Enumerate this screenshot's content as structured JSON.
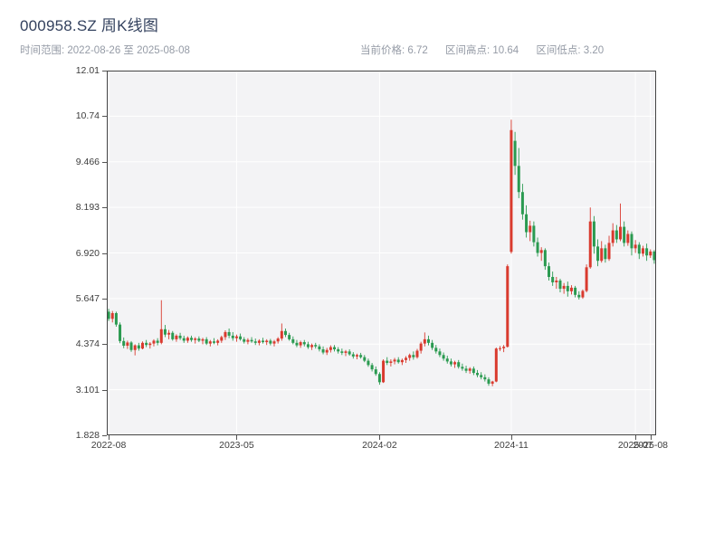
{
  "header": {
    "title": "000958.SZ 周K线图",
    "time_range_label": "时间范围: 2022-08-26 至 2025-08-08",
    "stats": {
      "current_price": "当前价格: 6.72",
      "range_high": "区间高点: 10.64",
      "range_low": "区间低点: 3.20"
    }
  },
  "chart_data": {
    "type": "candlestick",
    "title": "000958.SZ 周K线图",
    "symbol": "000958.SZ",
    "interval": "weekly",
    "date_start": "2022-08-26",
    "date_end": "2025-08-08",
    "current_price": 6.72,
    "range_high": 10.64,
    "range_low": 3.2,
    "ylim": [
      1.828,
      12.012
    ],
    "grid": true,
    "y_ticks": [
      {
        "label": "1.828",
        "value": 1.828
      },
      {
        "label": "3.101",
        "value": 3.101
      },
      {
        "label": "4.374",
        "value": 4.374
      },
      {
        "label": "5.647",
        "value": 5.647
      },
      {
        "label": "6.920",
        "value": 6.92
      },
      {
        "label": "8.193",
        "value": 8.193
      },
      {
        "label": "9.466",
        "value": 9.466
      },
      {
        "label": "10.74",
        "value": 10.739
      },
      {
        "label": "12.01",
        "value": 12.012
      }
    ],
    "x_ticks": [
      {
        "label": "2022-08",
        "index": 0
      },
      {
        "label": "2023-05",
        "index": 34
      },
      {
        "label": "2024-02",
        "index": 72
      },
      {
        "label": "2024-11",
        "index": 107
      },
      {
        "label": "2025-07",
        "index": 140
      },
      {
        "label": "2025-08",
        "index": 144
      }
    ],
    "colors": {
      "up": "#d93a2e",
      "down": "#2a9a50",
      "panel": "#f3f3f5",
      "grid": "#ffffff",
      "border": "#454545",
      "tick_text": "#3d3d3d"
    },
    "columns": [
      "date",
      "open",
      "high",
      "low",
      "close"
    ],
    "candles": [
      [
        "2022-08-26",
        5.28,
        5.36,
        5.02,
        5.08
      ],
      [
        "2022-09-02",
        5.08,
        5.3,
        4.98,
        5.24
      ],
      [
        "2022-09-09",
        5.24,
        5.28,
        4.86,
        4.92
      ],
      [
        "2022-09-16",
        4.92,
        4.98,
        4.4,
        4.46
      ],
      [
        "2022-09-23",
        4.46,
        4.56,
        4.26,
        4.33
      ],
      [
        "2022-09-30",
        4.33,
        4.47,
        4.24,
        4.42
      ],
      [
        "2022-10-14",
        4.42,
        4.46,
        4.16,
        4.21
      ],
      [
        "2022-10-21",
        4.21,
        4.37,
        4.06,
        4.34
      ],
      [
        "2022-10-28",
        4.34,
        4.41,
        4.19,
        4.25
      ],
      [
        "2022-11-04",
        4.25,
        4.45,
        4.23,
        4.41
      ],
      [
        "2022-11-11",
        4.41,
        4.49,
        4.29,
        4.35
      ],
      [
        "2022-11-18",
        4.35,
        4.43,
        4.25,
        4.39
      ],
      [
        "2022-11-25",
        4.39,
        4.51,
        4.31,
        4.47
      ],
      [
        "2022-12-02",
        4.47,
        4.54,
        4.34,
        4.41
      ],
      [
        "2022-12-09",
        4.41,
        5.6,
        4.37,
        4.79
      ],
      [
        "2022-12-16",
        4.79,
        4.91,
        4.57,
        4.64
      ],
      [
        "2022-12-23",
        4.64,
        4.77,
        4.51,
        4.69
      ],
      [
        "2022-12-30",
        4.69,
        4.74,
        4.47,
        4.51
      ],
      [
        "2023-01-06",
        4.51,
        4.65,
        4.44,
        4.61
      ],
      [
        "2023-01-13",
        4.61,
        4.69,
        4.49,
        4.54
      ],
      [
        "2023-01-20",
        4.54,
        4.61,
        4.41,
        4.47
      ],
      [
        "2023-02-03",
        4.47,
        4.59,
        4.41,
        4.55
      ],
      [
        "2023-02-10",
        4.55,
        4.61,
        4.44,
        4.49
      ],
      [
        "2023-02-17",
        4.49,
        4.57,
        4.39,
        4.53
      ],
      [
        "2023-02-24",
        4.53,
        4.59,
        4.43,
        4.47
      ],
      [
        "2023-03-03",
        4.47,
        4.55,
        4.37,
        4.51
      ],
      [
        "2023-03-10",
        4.51,
        4.57,
        4.35,
        4.39
      ],
      [
        "2023-03-17",
        4.39,
        4.49,
        4.31,
        4.45
      ],
      [
        "2023-03-24",
        4.45,
        4.54,
        4.37,
        4.41
      ],
      [
        "2023-03-31",
        4.41,
        4.51,
        4.34,
        4.47
      ],
      [
        "2023-04-07",
        4.47,
        4.61,
        4.41,
        4.57
      ],
      [
        "2023-04-14",
        4.57,
        4.76,
        4.49,
        4.71
      ],
      [
        "2023-04-21",
        4.71,
        4.81,
        4.54,
        4.61
      ],
      [
        "2023-04-28",
        4.61,
        4.71,
        4.47,
        4.54
      ],
      [
        "2023-05-05",
        4.54,
        4.64,
        4.44,
        4.59
      ],
      [
        "2023-05-12",
        4.59,
        4.67,
        4.47,
        4.51
      ],
      [
        "2023-05-19",
        4.51,
        4.57,
        4.39,
        4.44
      ],
      [
        "2023-05-26",
        4.44,
        4.54,
        4.37,
        4.49
      ],
      [
        "2023-06-02",
        4.49,
        4.57,
        4.41,
        4.45
      ],
      [
        "2023-06-09",
        4.45,
        4.53,
        4.35,
        4.41
      ],
      [
        "2023-06-16",
        4.41,
        4.51,
        4.34,
        4.47
      ],
      [
        "2023-06-23",
        4.47,
        4.55,
        4.39,
        4.43
      ],
      [
        "2023-06-30",
        4.43,
        4.51,
        4.35,
        4.47
      ],
      [
        "2023-07-07",
        4.47,
        4.52,
        4.34,
        4.39
      ],
      [
        "2023-07-14",
        4.39,
        4.49,
        4.31,
        4.45
      ],
      [
        "2023-07-21",
        4.45,
        4.57,
        4.39,
        4.53
      ],
      [
        "2023-07-28",
        4.53,
        4.95,
        4.47,
        4.74
      ],
      [
        "2023-08-04",
        4.74,
        4.81,
        4.57,
        4.63
      ],
      [
        "2023-08-11",
        4.63,
        4.69,
        4.47,
        4.51
      ],
      [
        "2023-08-18",
        4.51,
        4.59,
        4.37,
        4.41
      ],
      [
        "2023-08-25",
        4.41,
        4.49,
        4.29,
        4.34
      ],
      [
        "2023-09-01",
        4.34,
        4.47,
        4.27,
        4.43
      ],
      [
        "2023-09-08",
        4.43,
        4.49,
        4.31,
        4.37
      ],
      [
        "2023-09-15",
        4.37,
        4.44,
        4.24,
        4.29
      ],
      [
        "2023-09-22",
        4.29,
        4.39,
        4.21,
        4.35
      ],
      [
        "2023-09-29",
        4.35,
        4.41,
        4.25,
        4.31
      ],
      [
        "2023-10-13",
        4.31,
        4.37,
        4.17,
        4.23
      ],
      [
        "2023-10-20",
        4.23,
        4.31,
        4.09,
        4.14
      ],
      [
        "2023-10-27",
        4.14,
        4.27,
        4.07,
        4.21
      ],
      [
        "2023-11-03",
        4.21,
        4.34,
        4.14,
        4.29
      ],
      [
        "2023-11-10",
        4.29,
        4.35,
        4.17,
        4.23
      ],
      [
        "2023-11-17",
        4.23,
        4.29,
        4.11,
        4.17
      ],
      [
        "2023-11-24",
        4.17,
        4.25,
        4.07,
        4.13
      ],
      [
        "2023-12-01",
        4.13,
        4.21,
        4.04,
        4.17
      ],
      [
        "2023-12-08",
        4.17,
        4.23,
        4.05,
        4.09
      ],
      [
        "2023-12-15",
        4.09,
        4.15,
        3.97,
        4.03
      ],
      [
        "2023-12-22",
        4.03,
        4.11,
        3.95,
        4.07
      ],
      [
        "2023-12-29",
        4.07,
        4.13,
        3.97,
        4.01
      ],
      [
        "2024-01-05",
        4.01,
        4.07,
        3.87,
        3.91
      ],
      [
        "2024-01-12",
        3.91,
        3.97,
        3.74,
        3.79
      ],
      [
        "2024-01-19",
        3.79,
        3.85,
        3.61,
        3.67
      ],
      [
        "2024-01-26",
        3.67,
        3.75,
        3.49,
        3.54
      ],
      [
        "2024-02-02",
        3.54,
        3.59,
        3.24,
        3.31
      ],
      [
        "2024-02-09",
        3.31,
        3.95,
        3.29,
        3.91
      ],
      [
        "2024-02-23",
        3.91,
        4.01,
        3.79,
        3.85
      ],
      [
        "2024-03-01",
        3.85,
        3.95,
        3.75,
        3.89
      ],
      [
        "2024-03-08",
        3.89,
        3.99,
        3.81,
        3.94
      ],
      [
        "2024-03-15",
        3.94,
        4.01,
        3.83,
        3.87
      ],
      [
        "2024-03-22",
        3.87,
        3.97,
        3.79,
        3.93
      ],
      [
        "2024-03-29",
        3.93,
        4.04,
        3.85,
        3.99
      ],
      [
        "2024-04-12",
        3.99,
        4.11,
        3.91,
        4.07
      ],
      [
        "2024-04-19",
        4.07,
        4.17,
        3.94,
        4.01
      ],
      [
        "2024-04-26",
        4.01,
        4.24,
        3.97,
        4.19
      ],
      [
        "2024-05-10",
        4.19,
        4.44,
        4.11,
        4.39
      ],
      [
        "2024-05-17",
        4.39,
        4.7,
        4.31,
        4.51
      ],
      [
        "2024-05-24",
        4.51,
        4.61,
        4.34,
        4.41
      ],
      [
        "2024-05-31",
        4.41,
        4.49,
        4.21,
        4.27
      ],
      [
        "2024-06-07",
        4.27,
        4.35,
        4.11,
        4.17
      ],
      [
        "2024-06-14",
        4.17,
        4.25,
        4.01,
        4.07
      ],
      [
        "2024-06-21",
        4.07,
        4.14,
        3.91,
        3.97
      ],
      [
        "2024-06-28",
        3.97,
        4.05,
        3.83,
        3.89
      ],
      [
        "2024-07-05",
        3.89,
        3.97,
        3.75,
        3.81
      ],
      [
        "2024-07-12",
        3.81,
        3.91,
        3.71,
        3.87
      ],
      [
        "2024-07-19",
        3.87,
        3.93,
        3.69,
        3.74
      ],
      [
        "2024-07-26",
        3.74,
        3.83,
        3.63,
        3.69
      ],
      [
        "2024-08-02",
        3.69,
        3.77,
        3.57,
        3.63
      ],
      [
        "2024-08-09",
        3.63,
        3.73,
        3.55,
        3.69
      ],
      [
        "2024-08-16",
        3.69,
        3.75,
        3.51,
        3.57
      ],
      [
        "2024-08-23",
        3.57,
        3.65,
        3.45,
        3.51
      ],
      [
        "2024-08-30",
        3.51,
        3.59,
        3.39,
        3.45
      ],
      [
        "2024-09-06",
        3.45,
        3.53,
        3.33,
        3.39
      ],
      [
        "2024-09-13",
        3.39,
        3.45,
        3.21,
        3.27
      ],
      [
        "2024-09-20",
        3.27,
        3.35,
        3.2,
        3.33
      ],
      [
        "2024-09-27",
        3.33,
        4.28,
        3.31,
        4.25
      ],
      [
        "2024-10-11",
        4.25,
        4.32,
        4.18,
        4.26
      ],
      [
        "2024-10-18",
        4.26,
        4.35,
        4.15,
        4.3
      ],
      [
        "2024-10-25",
        4.3,
        6.6,
        4.28,
        6.55
      ],
      [
        "2024-11-01",
        6.95,
        10.64,
        6.9,
        10.35
      ],
      [
        "2024-11-08",
        10.05,
        10.3,
        9.1,
        9.35
      ],
      [
        "2024-11-15",
        9.35,
        9.85,
        8.45,
        8.62
      ],
      [
        "2024-11-22",
        8.62,
        8.85,
        7.85,
        8.0
      ],
      [
        "2024-11-29",
        8.0,
        8.25,
        7.35,
        7.5
      ],
      [
        "2024-12-06",
        7.5,
        7.82,
        7.25,
        7.68
      ],
      [
        "2024-12-13",
        7.68,
        7.8,
        7.1,
        7.22
      ],
      [
        "2024-12-20",
        7.22,
        7.35,
        6.82,
        6.92
      ],
      [
        "2024-12-27",
        6.92,
        7.08,
        6.7,
        7.0
      ],
      [
        "2025-01-03",
        7.0,
        7.05,
        6.45,
        6.55
      ],
      [
        "2025-01-10",
        6.55,
        6.65,
        6.15,
        6.25
      ],
      [
        "2025-01-17",
        6.25,
        6.4,
        6.0,
        6.1
      ],
      [
        "2025-01-24",
        6.1,
        6.25,
        5.92,
        6.15
      ],
      [
        "2025-02-07",
        6.15,
        6.2,
        5.82,
        5.92
      ],
      [
        "2025-02-14",
        5.92,
        6.08,
        5.78,
        6.0
      ],
      [
        "2025-02-21",
        6.0,
        6.12,
        5.7,
        5.85
      ],
      [
        "2025-02-28",
        5.85,
        6.02,
        5.76,
        5.95
      ],
      [
        "2025-03-07",
        5.95,
        6.0,
        5.68,
        5.75
      ],
      [
        "2025-03-14",
        5.75,
        5.85,
        5.62,
        5.68
      ],
      [
        "2025-03-21",
        5.68,
        5.9,
        5.64,
        5.86
      ],
      [
        "2025-03-28",
        5.86,
        6.6,
        5.82,
        6.52
      ],
      [
        "2025-04-04",
        6.52,
        8.19,
        6.48,
        7.8
      ],
      [
        "2025-04-11",
        7.8,
        7.95,
        6.9,
        7.1
      ],
      [
        "2025-04-18",
        7.1,
        7.3,
        6.55,
        6.7
      ],
      [
        "2025-04-25",
        6.7,
        7.25,
        6.65,
        7.05
      ],
      [
        "2025-05-09",
        7.05,
        7.15,
        6.65,
        6.75
      ],
      [
        "2025-05-16",
        6.75,
        7.4,
        6.7,
        7.2
      ],
      [
        "2025-05-23",
        7.2,
        7.75,
        7.1,
        7.55
      ],
      [
        "2025-05-30",
        7.55,
        7.7,
        7.2,
        7.3
      ],
      [
        "2025-06-06",
        7.3,
        8.3,
        7.25,
        7.65
      ],
      [
        "2025-06-13",
        7.65,
        7.8,
        7.1,
        7.2
      ],
      [
        "2025-06-20",
        7.2,
        7.55,
        7.12,
        7.45
      ],
      [
        "2025-06-27",
        7.45,
        7.52,
        6.85,
        7.05
      ],
      [
        "2025-07-04",
        7.05,
        7.28,
        6.92,
        7.15
      ],
      [
        "2025-07-11",
        7.15,
        7.22,
        6.75,
        6.9
      ],
      [
        "2025-07-18",
        6.9,
        7.12,
        6.82,
        7.05
      ],
      [
        "2025-07-25",
        7.05,
        7.18,
        6.7,
        6.85
      ],
      [
        "2025-08-01",
        6.85,
        7.02,
        6.78,
        6.96
      ],
      [
        "2025-08-08",
        6.96,
        7.0,
        6.62,
        6.72
      ]
    ]
  }
}
